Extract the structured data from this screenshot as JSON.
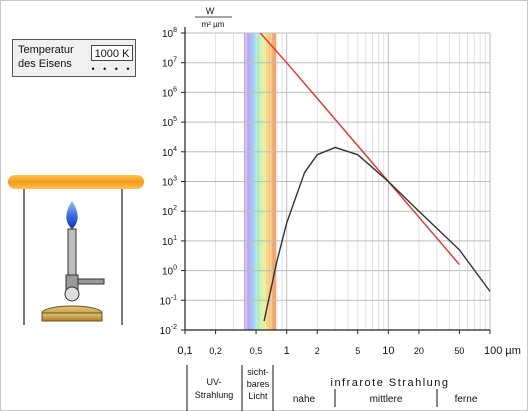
{
  "temperature_panel": {
    "label": "Temperatur\ndes Eisens",
    "value": "1000 K",
    "dots": "• • • •"
  },
  "unit_label": {
    "numerator": "W",
    "denominator": "m² µm"
  },
  "x_axis": {
    "tick_labels": [
      "0,1",
      "0,2",
      "0,5",
      "1",
      "2",
      "5",
      "10",
      "20",
      "50",
      "100 µm"
    ],
    "tick_values": [
      0.1,
      0.2,
      0.5,
      1,
      2,
      5,
      10,
      20,
      50,
      100
    ]
  },
  "y_axis": {
    "tick_exponents": [
      -2,
      -1,
      0,
      1,
      2,
      3,
      4,
      5,
      6,
      7,
      8
    ],
    "tick_base": "10"
  },
  "region_labels": {
    "uv": "UV-\nStrahlung",
    "visible": "sicht-\nbares\nLicht",
    "infrared": "infrarote Strahlung",
    "near": "nahe",
    "middle": "mittlere",
    "far": "ferne"
  },
  "chart_data": {
    "type": "line",
    "x_scale": "log",
    "y_scale": "log",
    "xlim": [
      0.1,
      100
    ],
    "ylim": [
      0.01,
      100000000
    ],
    "grid": true,
    "series": [
      {
        "color": "#e8332b",
        "x": [
          0.55,
          1,
          2,
          5,
          10,
          20,
          50
        ],
        "y": [
          100000000,
          10000000,
          630000,
          16000,
          1000,
          63,
          1.6
        ]
      },
      {
        "color": "#333333",
        "x": [
          0.6,
          0.8,
          1,
          1.5,
          2,
          3,
          5,
          10,
          20,
          50,
          100
        ],
        "y": [
          0.02,
          2,
          40,
          2000,
          8000,
          14000,
          8000,
          1000,
          100,
          5,
          0.2
        ]
      }
    ],
    "visible_band": {
      "from": 0.38,
      "to": 0.78
    }
  },
  "colors": {
    "planck_curve": "#333333",
    "rayleigh_line": "#e8332b",
    "flame": "#3d6ef0",
    "glow": "#f7a61b",
    "burner": "#c9a24a"
  }
}
